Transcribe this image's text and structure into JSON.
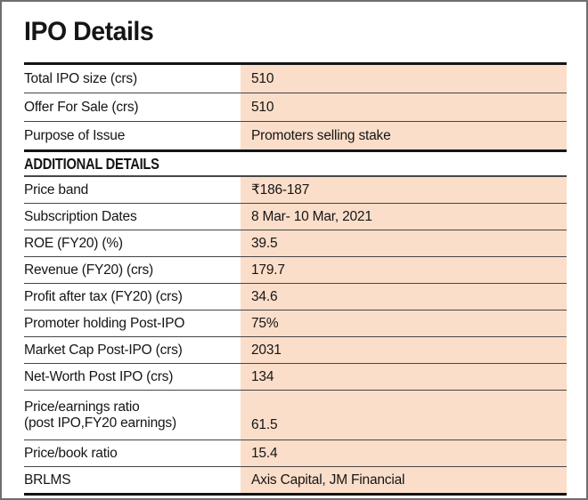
{
  "page": {
    "title": "IPO Details"
  },
  "colors": {
    "value_bg": "#fbdeca",
    "rule_black": "#141414",
    "rule_gray": "#474747",
    "text": "#151515",
    "frame": "#6f6f6f"
  },
  "table": {
    "key_rows": [
      {
        "label": "Total IPO size (crs)",
        "value": "510"
      },
      {
        "label": "Offer For Sale (crs)",
        "value": "510"
      },
      {
        "label": "Purpose of Issue",
        "value": "Promoters selling stake"
      }
    ],
    "section_header": "ADDITIONAL DETAILS",
    "additional_rows": [
      {
        "label": "Price band",
        "value": "₹186-187"
      },
      {
        "label": "Subscription Dates",
        "value": "8 Mar- 10 Mar, 2021"
      },
      {
        "label": "ROE (FY20) (%)",
        "value": "39.5"
      },
      {
        "label": "Revenue (FY20) (crs)",
        "value": "179.7"
      },
      {
        "label": "Profit after tax (FY20) (crs)",
        "value": "34.6"
      },
      {
        "label": "Promoter holding Post-IPO",
        "value": "75%"
      },
      {
        "label": "Market Cap Post-IPO (crs)",
        "value": "2031"
      },
      {
        "label": "Net-Worth Post IPO (crs)",
        "value": "134"
      },
      {
        "label": "Price/earnings ratio",
        "label_line2": "(post IPO,FY20 earnings)",
        "value": "61.5"
      },
      {
        "label": "Price/book ratio",
        "value": "15.4"
      },
      {
        "label": "BRLMS",
        "value": "Axis Capital, JM Financial"
      }
    ]
  }
}
